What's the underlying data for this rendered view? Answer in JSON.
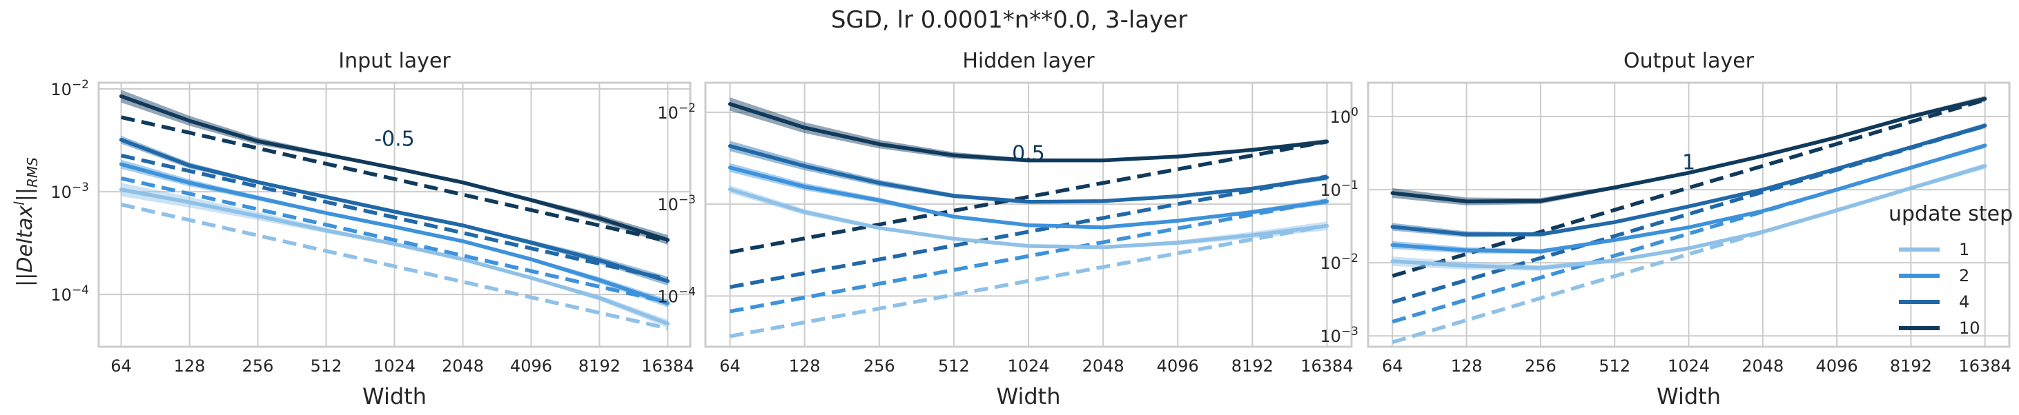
{
  "figure": {
    "title": "SGD, lr 0.0001*n**0.0, 3-layer",
    "ylabel": "||Delta x^l||_RMS",
    "legend_title": "update step"
  },
  "colors": {
    "1": "#8fc1e8",
    "2": "#3d92db",
    "4": "#2068a8",
    "10": "#103a5c",
    "grid": "#cccccc",
    "text": "#262626"
  },
  "chart_data": [
    {
      "type": "line",
      "title": "Input layer",
      "xlabel": "Width",
      "ylabel": "||Delta x^l||_RMS",
      "xscale": "log2",
      "yscale": "log10",
      "x": [
        64,
        128,
        256,
        512,
        1024,
        2048,
        4096,
        8192,
        16384
      ],
      "x_tick_labels": [
        "64",
        "128",
        "256",
        "512",
        "1024",
        "2048",
        "4096",
        "8192",
        "16384"
      ],
      "ylim": [
        3.1e-05,
        0.0115
      ],
      "y_ticks": [
        0.01,
        0.001,
        0.0001
      ],
      "y_tick_labels": [
        "10^-2",
        "10^-3",
        "10^-4"
      ],
      "series": [
        {
          "name": "1",
          "values": [
            0.00105,
            0.00079,
            0.00058,
            0.00042,
            0.00031,
            0.00022,
            0.000145,
            9.25e-05,
            5.2e-05
          ],
          "band": [
            0.00122,
            4.75e-05
          ]
        },
        {
          "name": "2",
          "values": [
            0.00185,
            0.00122,
            0.00087,
            0.00062,
            0.000455,
            0.00033,
            0.00022,
            0.000138,
            8.2e-05
          ],
          "band": [
            0.00205,
            7.5e-05
          ]
        },
        {
          "name": "4",
          "values": [
            0.0032,
            0.0018,
            0.00124,
            0.00089,
            0.00064,
            0.00047,
            0.00032,
            0.000215,
            0.000135
          ],
          "band": [
            0.0035,
            0.000122
          ]
        },
        {
          "name": "10",
          "values": [
            0.0085,
            0.0049,
            0.0031,
            0.0023,
            0.0017,
            0.00123,
            0.00083,
            0.00055,
            0.00034
          ],
          "band": [
            0.0098,
            0.000305
          ]
        }
      ],
      "reference_lines": [
        {
          "name": "1",
          "values": [
            0.00075,
            0.00053,
            0.000375,
            0.000265,
            0.000188,
            0.000133,
            9.38e-05,
            6.63e-05,
            4.69e-05
          ]
        },
        {
          "name": "2",
          "values": [
            0.00135,
            0.000955,
            0.000675,
            0.000477,
            0.000338,
            0.000239,
            0.000169,
            0.000119,
            8.44e-05
          ]
        },
        {
          "name": "4",
          "values": [
            0.00225,
            0.00159,
            0.001125,
            0.000795,
            0.000563,
            0.000398,
            0.000281,
            0.000199,
            0.000141
          ]
        },
        {
          "name": "10",
          "values": [
            0.0053,
            0.00375,
            0.00265,
            0.00187,
            0.00133,
            0.000937,
            0.000663,
            0.000469,
            0.000331
          ]
        }
      ],
      "annotation": {
        "text": "-0.5",
        "x": 1024,
        "y": 0.0028
      }
    },
    {
      "type": "line",
      "title": "Hidden layer",
      "xlabel": "Width",
      "ylabel": "",
      "xscale": "log2",
      "yscale": "log10",
      "x": [
        64,
        128,
        256,
        512,
        1024,
        2048,
        4096,
        8192,
        16384
      ],
      "x_tick_labels": [
        "64",
        "128",
        "256",
        "512",
        "1024",
        "2048",
        "4096",
        "8192",
        "16384"
      ],
      "ylim": [
        2.8e-05,
        0.021
      ],
      "y_ticks": [
        0.01,
        0.001,
        0.0001
      ],
      "y_tick_labels": [
        "10^-2",
        "10^-3",
        "10^-4"
      ],
      "series": [
        {
          "name": "1",
          "values": [
            0.00145,
            0.00082,
            0.00055,
            0.00042,
            0.00035,
            0.00034,
            0.00038,
            0.00046,
            0.00058
          ],
          "band": [
            0.0016,
            0.00052
          ]
        },
        {
          "name": "2",
          "values": [
            0.0025,
            0.00155,
            0.0011,
            0.00073,
            0.00059,
            0.00056,
            0.00066,
            0.00082,
            0.00107
          ],
          "band": [
            0.0028,
            0.00099
          ]
        },
        {
          "name": "4",
          "values": [
            0.0043,
            0.0026,
            0.0017,
            0.00123,
            0.00106,
            0.00108,
            0.00122,
            0.00148,
            0.00195
          ],
          "band": [
            0.0049,
            0.00182
          ]
        },
        {
          "name": "10",
          "values": [
            0.0123,
            0.0068,
            0.0045,
            0.0034,
            0.003,
            0.003,
            0.0033,
            0.0039,
            0.0048
          ],
          "band": [
            0.0145,
            0.0045
          ]
        }
      ],
      "reference_lines": [
        {
          "name": "1",
          "values": [
            3.65e-05,
            5.16e-05,
            7.3e-05,
            0.000103,
            0.000146,
            0.000207,
            0.000292,
            0.000413,
            0.000584
          ]
        },
        {
          "name": "2",
          "values": [
            6.8e-05,
            9.62e-05,
            0.000136,
            0.000192,
            0.000272,
            0.000385,
            0.000544,
            0.00077,
            0.00109
          ]
        },
        {
          "name": "4",
          "values": [
            0.000125,
            0.000177,
            0.00025,
            0.000354,
            0.0005,
            0.000707,
            0.001,
            0.00141,
            0.002
          ]
        },
        {
          "name": "10",
          "values": [
            0.0003,
            0.000424,
            0.0006,
            0.000849,
            0.0012,
            0.0017,
            0.0024,
            0.00339,
            0.0048
          ]
        }
      ],
      "annotation": {
        "text": "0.5",
        "x": 1024,
        "y": 0.003
      }
    },
    {
      "type": "line",
      "title": "Output layer",
      "xlabel": "Width",
      "ylabel": "",
      "xscale": "log2",
      "yscale": "log10",
      "x": [
        64,
        128,
        256,
        512,
        1024,
        2048,
        4096,
        8192,
        16384
      ],
      "x_tick_labels": [
        "64",
        "128",
        "256",
        "512",
        "1024",
        "2048",
        "4096",
        "8192",
        "16384"
      ],
      "ylim": [
        0.00071,
        2.9
      ],
      "y_ticks": [
        1,
        0.1,
        0.01,
        0.001
      ],
      "y_tick_labels": [
        "10^0",
        "10^-1",
        "10^-2",
        "10^-3"
      ],
      "series": [
        {
          "name": "1",
          "values": [
            0.0105,
            0.0091,
            0.0085,
            0.0107,
            0.0158,
            0.0265,
            0.052,
            0.105,
            0.21
          ],
          "band": [
            0.0122,
            0.192
          ]
        },
        {
          "name": "2",
          "values": [
            0.0175,
            0.0148,
            0.0143,
            0.0205,
            0.0305,
            0.051,
            0.1,
            0.2,
            0.4
          ],
          "band": [
            0.0198,
            0.37
          ]
        },
        {
          "name": "4",
          "values": [
            0.031,
            0.0245,
            0.0245,
            0.036,
            0.059,
            0.1,
            0.193,
            0.38,
            0.75
          ],
          "band": [
            0.035,
            0.69
          ]
        },
        {
          "name": "10",
          "values": [
            0.09,
            0.069,
            0.07,
            0.107,
            0.17,
            0.29,
            0.52,
            1.0,
            1.75
          ],
          "band": [
            0.105,
            1.6
          ]
        }
      ],
      "reference_lines": [
        {
          "name": "1",
          "values": [
            0.00082,
            0.00164,
            0.00328,
            0.00656,
            0.0131,
            0.0262,
            0.0525,
            0.105,
            0.21
          ]
        },
        {
          "name": "2",
          "values": [
            0.00156,
            0.00312,
            0.00625,
            0.0125,
            0.025,
            0.05,
            0.1,
            0.2,
            0.4
          ]
        },
        {
          "name": "4",
          "values": [
            0.0029,
            0.0058,
            0.0116,
            0.0232,
            0.0464,
            0.0928,
            0.186,
            0.371,
            0.743
          ]
        },
        {
          "name": "10",
          "values": [
            0.0066,
            0.0132,
            0.0264,
            0.0528,
            0.106,
            0.211,
            0.422,
            0.845,
            1.69
          ]
        }
      ],
      "annotation": {
        "text": "1",
        "x": 1024,
        "y": 0.19
      },
      "legend": {
        "title": "update step",
        "entries": [
          "1",
          "2",
          "4",
          "10"
        ],
        "placement": "lower-right"
      }
    }
  ]
}
